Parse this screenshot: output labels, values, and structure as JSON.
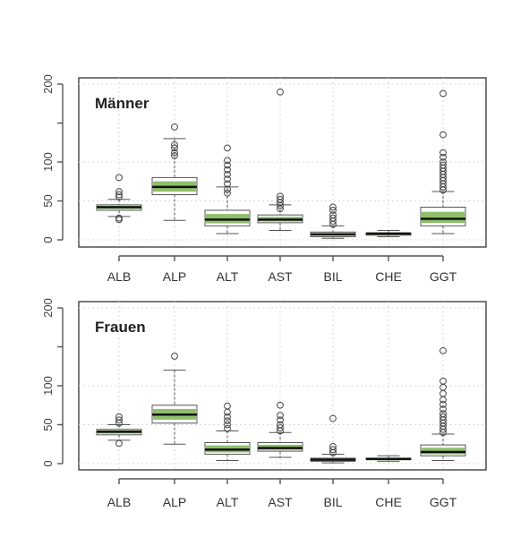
{
  "chart_data": [
    {
      "type": "boxplot",
      "title": "Männer",
      "categories": [
        "ALB",
        "ALP",
        "ALT",
        "AST",
        "BIL",
        "CHE",
        "GGT"
      ],
      "ylim": [
        0,
        200
      ],
      "yticks": [
        0,
        50,
        100,
        200
      ],
      "grid": true,
      "boxes": [
        {
          "category": "ALB",
          "whisker_low": 30,
          "q1": 38,
          "median": 42,
          "q3": 45,
          "whisker_high": 52,
          "outliers": [
            26,
            28,
            55,
            58,
            62,
            80
          ]
        },
        {
          "category": "ALP",
          "whisker_low": 25,
          "q1": 58,
          "median": 68,
          "q3": 80,
          "whisker_high": 130,
          "outliers": [
            108,
            112,
            118,
            122,
            145
          ]
        },
        {
          "category": "ALT",
          "whisker_low": 8,
          "q1": 18,
          "median": 26,
          "q3": 38,
          "whisker_high": 68,
          "outliers": [
            60,
            65,
            72,
            78,
            84,
            90,
            96,
            102,
            118
          ]
        },
        {
          "category": "AST",
          "whisker_low": 12,
          "q1": 22,
          "median": 26,
          "q3": 32,
          "whisker_high": 45,
          "outliers": [
            40,
            44,
            48,
            52,
            56,
            190
          ]
        },
        {
          "category": "BIL",
          "whisker_low": 2,
          "q1": 4,
          "median": 7,
          "q3": 10,
          "whisker_high": 18,
          "outliers": [
            20,
            24,
            28,
            32,
            38,
            42
          ]
        },
        {
          "category": "CHE",
          "whisker_low": 4,
          "q1": 6,
          "median": 8,
          "q3": 9,
          "whisker_high": 12,
          "outliers": []
        },
        {
          "category": "GGT",
          "whisker_low": 8,
          "q1": 18,
          "median": 27,
          "q3": 42,
          "whisker_high": 62,
          "outliers": [
            64,
            68,
            72,
            76,
            80,
            84,
            88,
            92,
            96,
            100,
            106,
            112,
            135,
            188
          ]
        }
      ]
    },
    {
      "type": "boxplot",
      "title": "Frauen",
      "categories": [
        "ALB",
        "ALP",
        "ALT",
        "AST",
        "BIL",
        "CHE",
        "GGT"
      ],
      "ylim": [
        0,
        200
      ],
      "yticks": [
        0,
        50,
        100,
        200
      ],
      "grid": true,
      "boxes": [
        {
          "category": "ALB",
          "whisker_low": 30,
          "q1": 37,
          "median": 41,
          "q3": 44,
          "whisker_high": 50,
          "outliers": [
            26,
            52,
            56,
            60
          ]
        },
        {
          "category": "ALP",
          "whisker_low": 25,
          "q1": 52,
          "median": 63,
          "q3": 75,
          "whisker_high": 120,
          "outliers": [
            138
          ]
        },
        {
          "category": "ALT",
          "whisker_low": 4,
          "q1": 12,
          "median": 18,
          "q3": 27,
          "whisker_high": 42,
          "outliers": [
            45,
            50,
            55,
            60,
            66,
            74
          ]
        },
        {
          "category": "AST",
          "whisker_low": 8,
          "q1": 16,
          "median": 20,
          "q3": 27,
          "whisker_high": 40,
          "outliers": [
            42,
            46,
            50,
            56,
            62,
            75
          ]
        },
        {
          "category": "BIL",
          "whisker_low": 1,
          "q1": 3,
          "median": 5,
          "q3": 7,
          "whisker_high": 12,
          "outliers": [
            14,
            18,
            22,
            58
          ]
        },
        {
          "category": "CHE",
          "whisker_low": 3,
          "q1": 5,
          "median": 6,
          "q3": 7,
          "whisker_high": 10,
          "outliers": []
        },
        {
          "category": "GGT",
          "whisker_low": 4,
          "q1": 10,
          "median": 15,
          "q3": 24,
          "whisker_high": 38,
          "outliers": [
            40,
            44,
            48,
            52,
            56,
            60,
            64,
            70,
            76,
            82,
            90,
            98,
            106,
            145
          ]
        }
      ]
    }
  ]
}
